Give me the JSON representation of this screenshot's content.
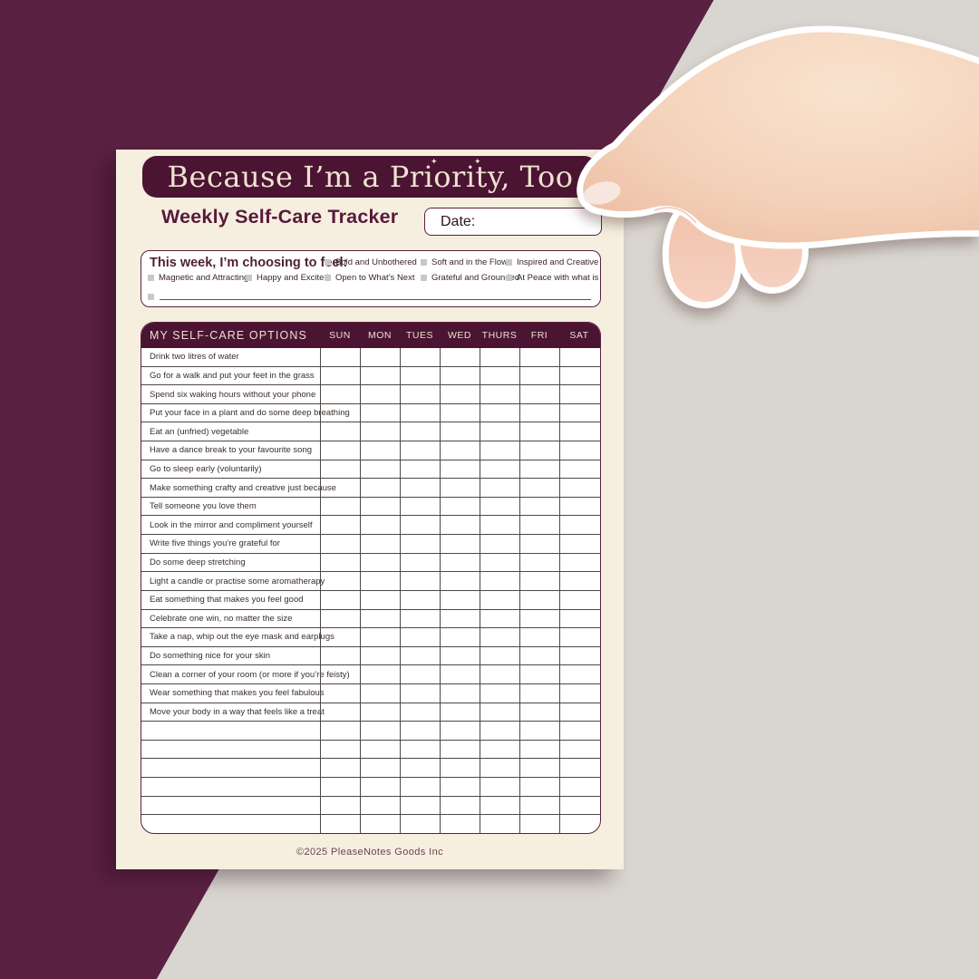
{
  "page": {
    "banner_title": "Because I’m a Priority, Too",
    "subtitle": "Weekly Self-Care Tracker",
    "date_label": "Date:",
    "footer": "©2025 PleaseNotes Goods Inc",
    "sparkle": "✦"
  },
  "feelings": {
    "title": "This week, I’m choosing to feel:",
    "row1": [
      "Bold and Unbothered",
      "Soft and in the Flow",
      "Inspired and Creative"
    ],
    "row2": [
      "Magnetic and Attracting",
      "Happy and Excited",
      "Open to What’s Next",
      "Grateful and Grounded",
      "At Peace with what is"
    ]
  },
  "tracker": {
    "header": "MY SELF-CARE OPTIONS",
    "days": [
      "SUN",
      "MON",
      "TUES",
      "WED",
      "THURS",
      "FRI",
      "SAT"
    ],
    "options": [
      "Drink two litres of water",
      "Go for a walk and put your feet in the grass",
      "Spend six waking hours without your phone",
      "Put your face in a plant and do some deep breathing",
      "Eat an (unfried) vegetable",
      "Have a dance break to your favourite song",
      "Go to sleep early (voluntarily)",
      "Make something crafty and creative just because",
      "Tell someone you love them",
      "Look in the mirror and compliment yourself",
      "Write five things you’re grateful for",
      "Do some deep stretching",
      "Light a candle or practise some aromatherapy",
      "Eat something that makes you feel good",
      "Celebrate one win, no matter the size",
      "Take a nap, whip out the eye mask and earplugs",
      "Do something nice for your skin",
      "Clean a corner of your room (or more if you’re feisty)",
      "Wear something that makes you feel fabulous",
      "Move your body in a way that feels like a treat"
    ],
    "empty_rows": 6
  },
  "colors": {
    "background_maroon": "#5b2143",
    "background_gray": "#d9d5d0",
    "paper_cream": "#f6efdf",
    "banner_maroon": "#4b1432",
    "text_maroon": "#571a3b",
    "grid_line": "#4c4845",
    "checkbox_gray": "#c7c9c6",
    "skin_tone": "#f4d2ba"
  }
}
